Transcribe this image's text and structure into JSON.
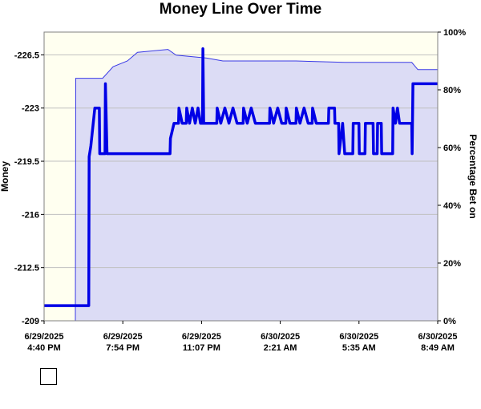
{
  "title": "Money Line Over Time",
  "chart_data": {
    "type": "line",
    "title": "Money Line Over Time",
    "ylabel": "Money",
    "y2label": "Percentage Bet on",
    "ylim": [
      -209,
      -228
    ],
    "yticks": [
      "-226.5",
      "-223",
      "-219.5",
      "-216",
      "-212.5",
      "-209"
    ],
    "y2lim": [
      0,
      100
    ],
    "y2ticks": [
      "0%",
      "20%",
      "40%",
      "60%",
      "80%",
      "100%"
    ],
    "xlim": [
      "2025-06-29 16:40",
      "2025-06-30 08:49"
    ],
    "xticks": [
      {
        "date": "6/29/2025",
        "time": "4:40 PM"
      },
      {
        "date": "6/29/2025",
        "time": "7:54 PM"
      },
      {
        "date": "6/29/2025",
        "time": "11:07 PM"
      },
      {
        "date": "6/30/2025",
        "time": "2:21 AM"
      },
      {
        "date": "6/30/2025",
        "time": "5:35 AM"
      },
      {
        "date": "6/30/2025",
        "time": "8:49 AM"
      }
    ],
    "grid": true,
    "colors": {
      "money_line": "#0000e6",
      "percent_fill": "#dcdcf5",
      "percent_line": "#3a3ae6",
      "no_data_bg": "#fffff0",
      "grid": "#c0c0c0"
    },
    "series": [
      {
        "kind": "money",
        "points": [
          [
            "2025-06-29 16:40",
            -210.0
          ],
          [
            "2025-06-29 18:30",
            -210.0
          ],
          [
            "2025-06-29 18:31",
            -219.8
          ],
          [
            "2025-06-29 18:35",
            -220.5
          ],
          [
            "2025-06-29 18:45",
            -223.0
          ],
          [
            "2025-06-29 18:56",
            -223.0
          ],
          [
            "2025-06-29 18:57",
            -220.0
          ],
          [
            "2025-06-29 19:10",
            -220.0
          ],
          [
            "2025-06-29 19:11",
            -224.6
          ],
          [
            "2025-06-29 19:15",
            -220.0
          ],
          [
            "2025-06-29 19:20",
            -220.0
          ],
          [
            "2025-06-29 21:50",
            -220.0
          ],
          [
            "2025-06-29 21:51",
            -221.0
          ],
          [
            "2025-06-29 22:00",
            -222.0
          ],
          [
            "2025-06-29 22:11",
            -222.0
          ],
          [
            "2025-06-29 22:12",
            -223.0
          ],
          [
            "2025-06-29 22:20",
            -222.0
          ],
          [
            "2025-06-29 22:30",
            -222.0
          ],
          [
            "2025-06-29 22:31",
            -223.0
          ],
          [
            "2025-06-29 22:38",
            -222.0
          ],
          [
            "2025-06-29 22:45",
            -223.0
          ],
          [
            "2025-06-29 22:52",
            -222.0
          ],
          [
            "2025-06-29 22:59",
            -223.0
          ],
          [
            "2025-06-29 23:05",
            -222.0
          ],
          [
            "2025-06-29 23:10",
            -222.0
          ],
          [
            "2025-06-29 23:11",
            -226.9
          ],
          [
            "2025-06-29 23:13",
            -222.0
          ],
          [
            "2025-06-29 23:45",
            -222.0
          ],
          [
            "2025-06-29 23:46",
            -223.0
          ],
          [
            "2025-06-29 23:55",
            -222.0
          ],
          [
            "2025-06-30 00:05",
            -223.0
          ],
          [
            "2025-06-30 00:15",
            -222.0
          ],
          [
            "2025-06-30 00:25",
            -223.0
          ],
          [
            "2025-06-30 00:35",
            -222.0
          ],
          [
            "2025-06-30 00:50",
            -222.0
          ],
          [
            "2025-06-30 00:51",
            -223.0
          ],
          [
            "2025-06-30 01:00",
            -222.0
          ],
          [
            "2025-06-30 01:10",
            -223.0
          ],
          [
            "2025-06-30 01:20",
            -222.0
          ],
          [
            "2025-06-30 01:55",
            -222.0
          ],
          [
            "2025-06-30 01:56",
            -223.0
          ],
          [
            "2025-06-30 02:05",
            -222.0
          ],
          [
            "2025-06-30 02:15",
            -223.0
          ],
          [
            "2025-06-30 02:25",
            -222.0
          ],
          [
            "2025-06-30 02:35",
            -222.0
          ],
          [
            "2025-06-30 02:36",
            -223.0
          ],
          [
            "2025-06-30 02:45",
            -222.0
          ],
          [
            "2025-06-30 03:00",
            -222.0
          ],
          [
            "2025-06-30 03:01",
            -223.0
          ],
          [
            "2025-06-30 03:10",
            -222.0
          ],
          [
            "2025-06-30 03:20",
            -223.0
          ],
          [
            "2025-06-30 03:30",
            -222.0
          ],
          [
            "2025-06-30 03:40",
            -222.0
          ],
          [
            "2025-06-30 03:41",
            -223.0
          ],
          [
            "2025-06-30 03:50",
            -222.0
          ],
          [
            "2025-06-30 04:20",
            -222.0
          ],
          [
            "2025-06-30 04:21",
            -223.0
          ],
          [
            "2025-06-30 04:35",
            -223.0
          ],
          [
            "2025-06-30 04:36",
            -222.0
          ],
          [
            "2025-06-30 04:45",
            -222.0
          ],
          [
            "2025-06-30 04:46",
            -220.0
          ],
          [
            "2025-06-30 04:55",
            -222.0
          ],
          [
            "2025-06-30 05:00",
            -220.0
          ],
          [
            "2025-06-30 05:20",
            -220.0
          ],
          [
            "2025-06-30 05:21",
            -222.0
          ],
          [
            "2025-06-30 05:35",
            -222.0
          ],
          [
            "2025-06-30 05:36",
            -220.0
          ],
          [
            "2025-06-30 05:50",
            -220.0
          ],
          [
            "2025-06-30 05:51",
            -222.0
          ],
          [
            "2025-06-30 06:10",
            -222.0
          ],
          [
            "2025-06-30 06:11",
            -220.0
          ],
          [
            "2025-06-30 06:20",
            -220.0
          ],
          [
            "2025-06-30 06:21",
            -222.0
          ],
          [
            "2025-06-30 06:30",
            -222.0
          ],
          [
            "2025-06-30 06:31",
            -220.0
          ],
          [
            "2025-06-30 06:58",
            -220.0
          ],
          [
            "2025-06-30 06:59",
            -223.0
          ],
          [
            "2025-06-30 07:05",
            -222.0
          ],
          [
            "2025-06-30 07:10",
            -223.0
          ],
          [
            "2025-06-30 07:15",
            -222.0
          ],
          [
            "2025-06-30 07:45",
            -222.0
          ],
          [
            "2025-06-30 07:46",
            -220.0
          ],
          [
            "2025-06-30 07:48",
            -224.6
          ],
          [
            "2025-06-30 08:49",
            -224.6
          ]
        ]
      },
      {
        "kind": "percent",
        "points": [
          [
            "2025-06-29 17:57",
            0
          ],
          [
            "2025-06-29 17:58",
            84
          ],
          [
            "2025-06-29 19:04",
            84
          ],
          [
            "2025-06-29 19:30",
            88
          ],
          [
            "2025-06-29 20:05",
            90
          ],
          [
            "2025-06-29 20:30",
            93
          ],
          [
            "2025-06-29 21:45",
            94
          ],
          [
            "2025-06-29 22:05",
            92
          ],
          [
            "2025-06-29 23:20",
            91
          ],
          [
            "2025-06-30 00:00",
            90
          ],
          [
            "2025-06-30 01:30",
            90
          ],
          [
            "2025-06-30 03:00",
            90
          ],
          [
            "2025-06-30 05:00",
            89.5
          ],
          [
            "2025-06-30 07:45",
            89.5
          ],
          [
            "2025-06-30 08:00",
            87
          ],
          [
            "2025-06-30 08:49",
            87
          ]
        ]
      }
    ]
  }
}
